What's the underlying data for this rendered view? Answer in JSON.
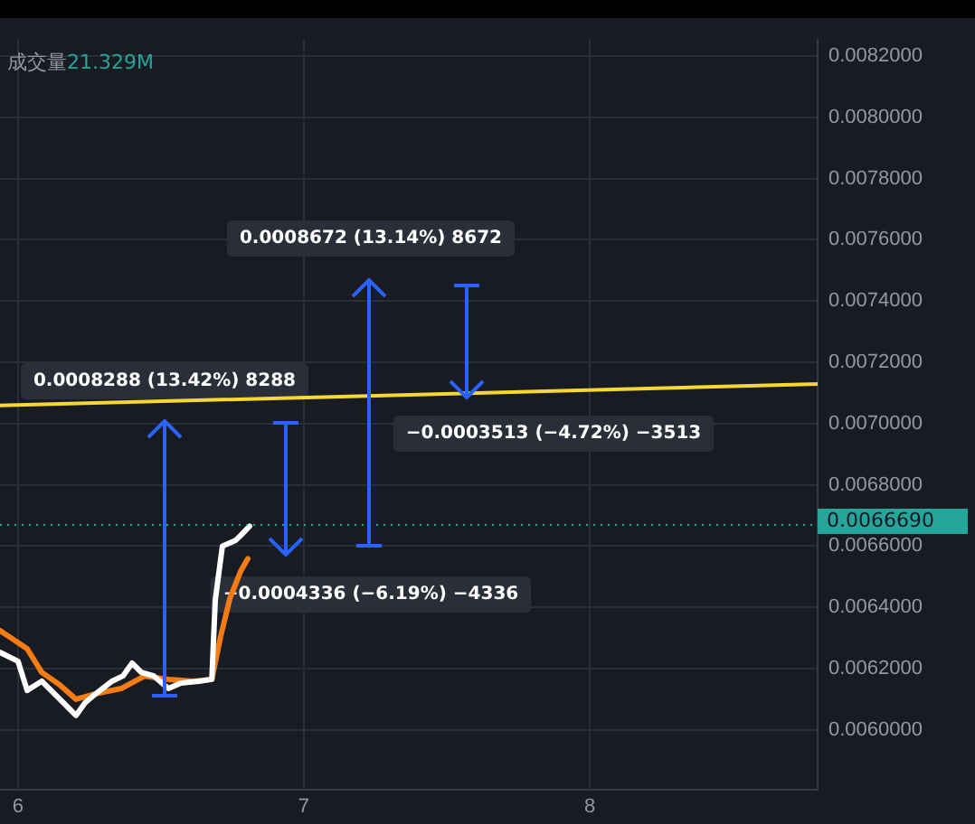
{
  "chart_data": {
    "type": "line",
    "x": [
      5.937,
      6.0,
      6.032,
      6.083,
      6.14,
      6.203,
      6.234,
      6.272,
      6.329,
      6.367,
      6.399,
      6.431,
      6.475,
      6.526,
      6.57,
      6.633,
      6.678,
      6.69,
      6.715,
      6.76,
      6.779,
      6.81
    ],
    "series": [
      {
        "color": "#ffffff",
        "values": [
          0.006253,
          0.006224,
          0.006129,
          0.006159,
          0.006106,
          0.006047,
          0.006088,
          0.006118,
          0.006159,
          0.006176,
          0.006218,
          0.006188,
          0.006176,
          0.006135,
          0.006153,
          0.006159,
          0.006165,
          0.006424,
          0.0066,
          0.006618,
          0.006635,
          0.006665
        ]
      },
      {
        "color": "#f57c14",
        "x": [
          5.937,
          6.032,
          6.083,
          6.146,
          6.203,
          6.272,
          6.361,
          6.443,
          6.526,
          6.614,
          6.678,
          6.709,
          6.741,
          6.779,
          6.804
        ],
        "values": [
          0.006324,
          0.006265,
          0.006188,
          0.006147,
          0.0061,
          0.006118,
          0.006135,
          0.006176,
          0.006165,
          0.006159,
          0.006165,
          0.006306,
          0.006429,
          0.006518,
          0.006559
        ]
      },
      {
        "type": "line",
        "color": "#f5d835",
        "x": [
          5.937,
          8.797
        ],
        "values": [
          0.007059,
          0.007129
        ]
      }
    ],
    "xlim": [
      5.937,
      8.797
    ],
    "xticks": [
      6,
      7,
      8
    ],
    "ylim": [
      0.005806,
      0.008253
    ],
    "yticks": [
      {
        "value": 0.006,
        "label": "0.0060000"
      },
      {
        "value": 0.0062,
        "label": "0.0062000"
      },
      {
        "value": 0.0064,
        "label": "0.0064000"
      },
      {
        "value": 0.0066,
        "label": "0.0066000"
      },
      {
        "value": 0.0068,
        "label": "0.0068000"
      },
      {
        "value": 0.007,
        "label": "0.0070000"
      },
      {
        "value": 0.0072,
        "label": "0.0072000"
      },
      {
        "value": 0.0074,
        "label": "0.0074000"
      },
      {
        "value": 0.0076,
        "label": "0.0076000"
      },
      {
        "value": 0.0078,
        "label": "0.0078000"
      },
      {
        "value": 0.008,
        "label": "0.0080000"
      },
      {
        "value": 0.0082,
        "label": "0.0082000"
      }
    ],
    "ref_lines": [
      {
        "axis": "y",
        "value": 0.006669,
        "label": "0.0066690",
        "color": "#26a69a",
        "line_style": "dotted"
      }
    ],
    "annotations": [
      "成交量21.329M",
      "0.0008288 (13.42%) 8288",
      "0.0008672 (13.14%) 8672",
      "−0.0003513 (−4.72%) −3513",
      "−0.0004336 (−6.19%) −4336"
    ],
    "grid": true,
    "legend": false,
    "marker": "none",
    "line_style": "solid"
  }
}
